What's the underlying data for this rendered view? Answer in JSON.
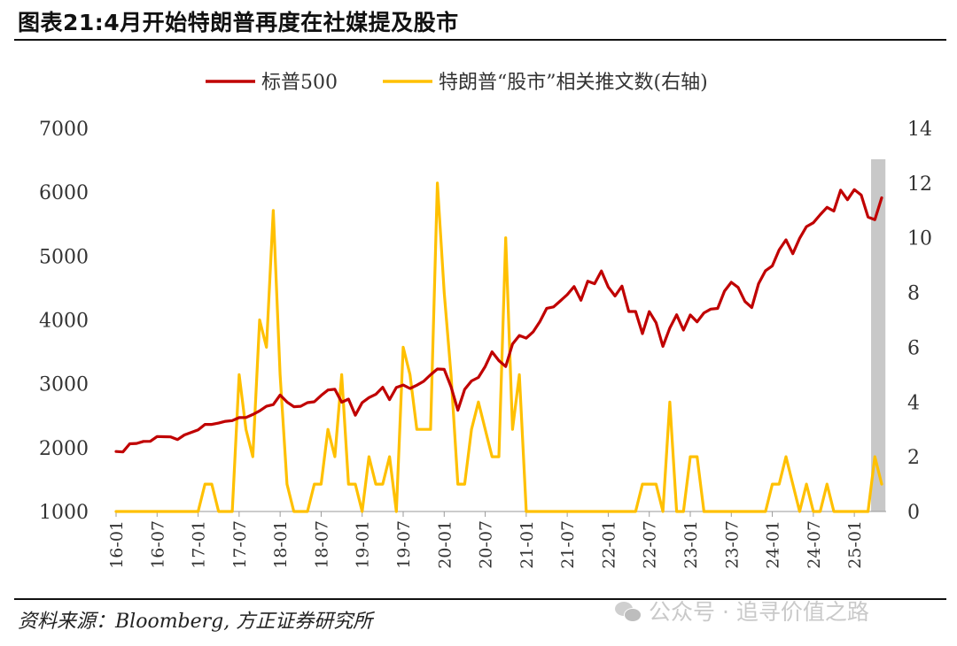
{
  "header": {
    "title": "图表21:4月开始特朗普再度在社媒提及股市"
  },
  "footer": {
    "source": "资料来源：Bloomberg, 方正证券研究所",
    "watermark": "公众号 · 追寻价值之路",
    "watermark_icon": "wechat-icon"
  },
  "colors": {
    "sp500": "#C00000",
    "tweets": "#FFC000",
    "highlight": "#C8C8C8",
    "axis": "#9a9a9a"
  },
  "chart_data": {
    "type": "line",
    "legend_position": "top-center",
    "grid": false,
    "highlight_band": {
      "x_start": "2025-04",
      "x_end": "2025-05",
      "axis": "x"
    },
    "x": [
      "2016-01",
      "2016-02",
      "2016-03",
      "2016-04",
      "2016-05",
      "2016-06",
      "2016-07",
      "2016-08",
      "2016-09",
      "2016-10",
      "2016-11",
      "2016-12",
      "2017-01",
      "2017-02",
      "2017-03",
      "2017-04",
      "2017-05",
      "2017-06",
      "2017-07",
      "2017-08",
      "2017-09",
      "2017-10",
      "2017-11",
      "2017-12",
      "2018-01",
      "2018-02",
      "2018-03",
      "2018-04",
      "2018-05",
      "2018-06",
      "2018-07",
      "2018-08",
      "2018-09",
      "2018-10",
      "2018-11",
      "2018-12",
      "2019-01",
      "2019-02",
      "2019-03",
      "2019-04",
      "2019-05",
      "2019-06",
      "2019-07",
      "2019-08",
      "2019-09",
      "2019-10",
      "2019-11",
      "2019-12",
      "2020-01",
      "2020-02",
      "2020-03",
      "2020-04",
      "2020-05",
      "2020-06",
      "2020-07",
      "2020-08",
      "2020-09",
      "2020-10",
      "2020-11",
      "2020-12",
      "2021-01",
      "2021-02",
      "2021-03",
      "2021-04",
      "2021-05",
      "2021-06",
      "2021-07",
      "2021-08",
      "2021-09",
      "2021-10",
      "2021-11",
      "2021-12",
      "2022-01",
      "2022-02",
      "2022-03",
      "2022-04",
      "2022-05",
      "2022-06",
      "2022-07",
      "2022-08",
      "2022-09",
      "2022-10",
      "2022-11",
      "2022-12",
      "2023-01",
      "2023-02",
      "2023-03",
      "2023-04",
      "2023-05",
      "2023-06",
      "2023-07",
      "2023-08",
      "2023-09",
      "2023-10",
      "2023-11",
      "2023-12",
      "2024-01",
      "2024-02",
      "2024-03",
      "2024-04",
      "2024-05",
      "2024-06",
      "2024-07",
      "2024-08",
      "2024-09",
      "2024-10",
      "2024-11",
      "2024-12",
      "2025-01",
      "2025-02",
      "2025-03",
      "2025-04",
      "2025-05"
    ],
    "x_tick_labels": [
      "16-01",
      "16-07",
      "17-01",
      "17-07",
      "18-01",
      "18-07",
      "19-01",
      "19-07",
      "20-01",
      "20-07",
      "21-01",
      "21-07",
      "22-01",
      "22-07",
      "23-01",
      "23-07",
      "24-01",
      "24-07",
      "25-01"
    ],
    "y_left": {
      "range": [
        1000,
        7000
      ],
      "ticks": [
        "1000",
        "2000",
        "3000",
        "4000",
        "5000",
        "6000",
        "7000"
      ]
    },
    "y_right": {
      "range": [
        0,
        14
      ],
      "ticks": [
        "0",
        "2",
        "4",
        "6",
        "8",
        "10",
        "12",
        "14"
      ]
    },
    "series": [
      {
        "name": "标普500",
        "axis": "left",
        "values": [
          1940,
          1932,
          2060,
          2065,
          2097,
          2099,
          2174,
          2171,
          2168,
          2126,
          2199,
          2239,
          2279,
          2364,
          2363,
          2384,
          2412,
          2423,
          2470,
          2472,
          2519,
          2575,
          2648,
          2674,
          2824,
          2714,
          2641,
          2648,
          2705,
          2718,
          2816,
          2902,
          2914,
          2711,
          2760,
          2507,
          2704,
          2784,
          2834,
          2946,
          2752,
          2942,
          2980,
          2926,
          2977,
          3038,
          3141,
          3231,
          3226,
          2954,
          2585,
          2912,
          3044,
          3100,
          3271,
          3500,
          3363,
          3270,
          3622,
          3756,
          3714,
          3811,
          3973,
          4181,
          4204,
          4298,
          4395,
          4523,
          4308,
          4605,
          4567,
          4766,
          4516,
          4374,
          4530,
          4132,
          4132,
          3785,
          4130,
          3955,
          3586,
          3872,
          4080,
          3840,
          4077,
          3970,
          4109,
          4169,
          4180,
          4450,
          4589,
          4508,
          4288,
          4194,
          4568,
          4770,
          4846,
          5096,
          5254,
          5036,
          5278,
          5460,
          5522,
          5648,
          5762,
          5705,
          6032,
          5882,
          6040,
          5955,
          5612,
          5570,
          5912
        ]
      },
      {
        "name": "特朗普“股市”相关推文数(右轴)",
        "axis": "right",
        "values": [
          0,
          0,
          0,
          0,
          0,
          0,
          0,
          0,
          0,
          0,
          0,
          0,
          0,
          1,
          1,
          0,
          0,
          0,
          5,
          3,
          2,
          7,
          6,
          11,
          5,
          1,
          0,
          0,
          0,
          1,
          1,
          3,
          2,
          5,
          1,
          1,
          0,
          2,
          1,
          1,
          2,
          0,
          6,
          5,
          3,
          3,
          3,
          12,
          8,
          5,
          1,
          1,
          3,
          4,
          3,
          2,
          2,
          10,
          3,
          5,
          0,
          0,
          0,
          0,
          0,
          0,
          0,
          0,
          0,
          0,
          0,
          0,
          0,
          0,
          0,
          0,
          0,
          1,
          1,
          1,
          0,
          4,
          0,
          0,
          2,
          2,
          0,
          0,
          0,
          0,
          0,
          0,
          0,
          0,
          0,
          0,
          1,
          1,
          2,
          1,
          0,
          1,
          0,
          0,
          1,
          0,
          0,
          0,
          0,
          0,
          0,
          2,
          1
        ]
      }
    ]
  }
}
